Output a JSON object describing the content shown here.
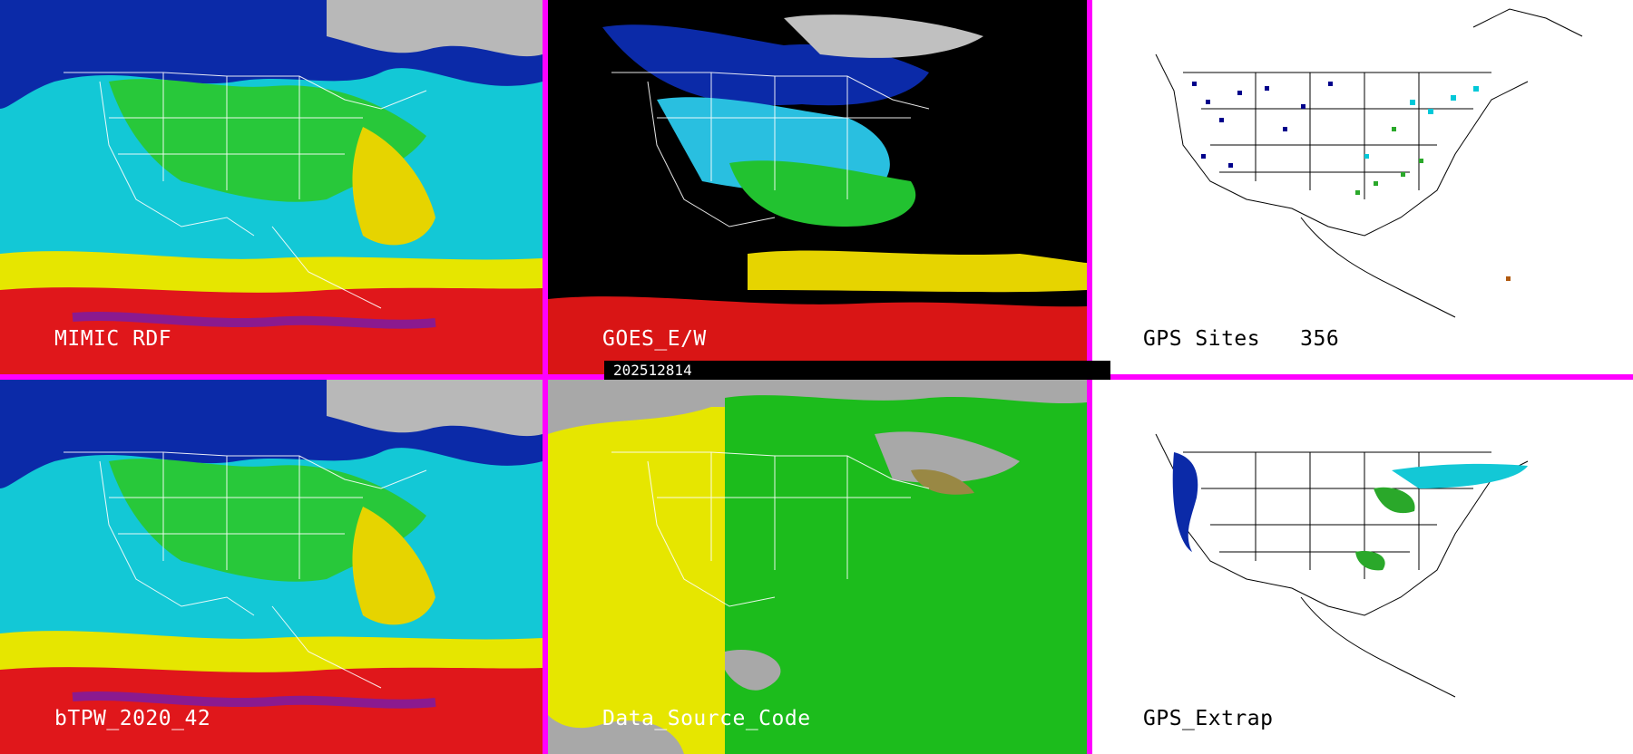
{
  "panels": [
    {
      "id": "mimic",
      "label": "MIMIC RDF"
    },
    {
      "id": "goes",
      "label": "GOES_E/W"
    },
    {
      "id": "gps-sites",
      "label": "GPS Sites",
      "count": "356"
    },
    {
      "id": "btpw",
      "label": "bTPW_2020_42"
    },
    {
      "id": "dsc",
      "label": "Data_Source_Code"
    },
    {
      "id": "gps-extrap",
      "label": "GPS_Extrap"
    }
  ],
  "timestamp": "202512814",
  "colors": {
    "divider": "#ff00ff",
    "palette": [
      "#ff0000",
      "#ffff00",
      "#00ff00",
      "#00ffff",
      "#0000cc",
      "#888888",
      "#000000",
      "#ffffff"
    ]
  }
}
